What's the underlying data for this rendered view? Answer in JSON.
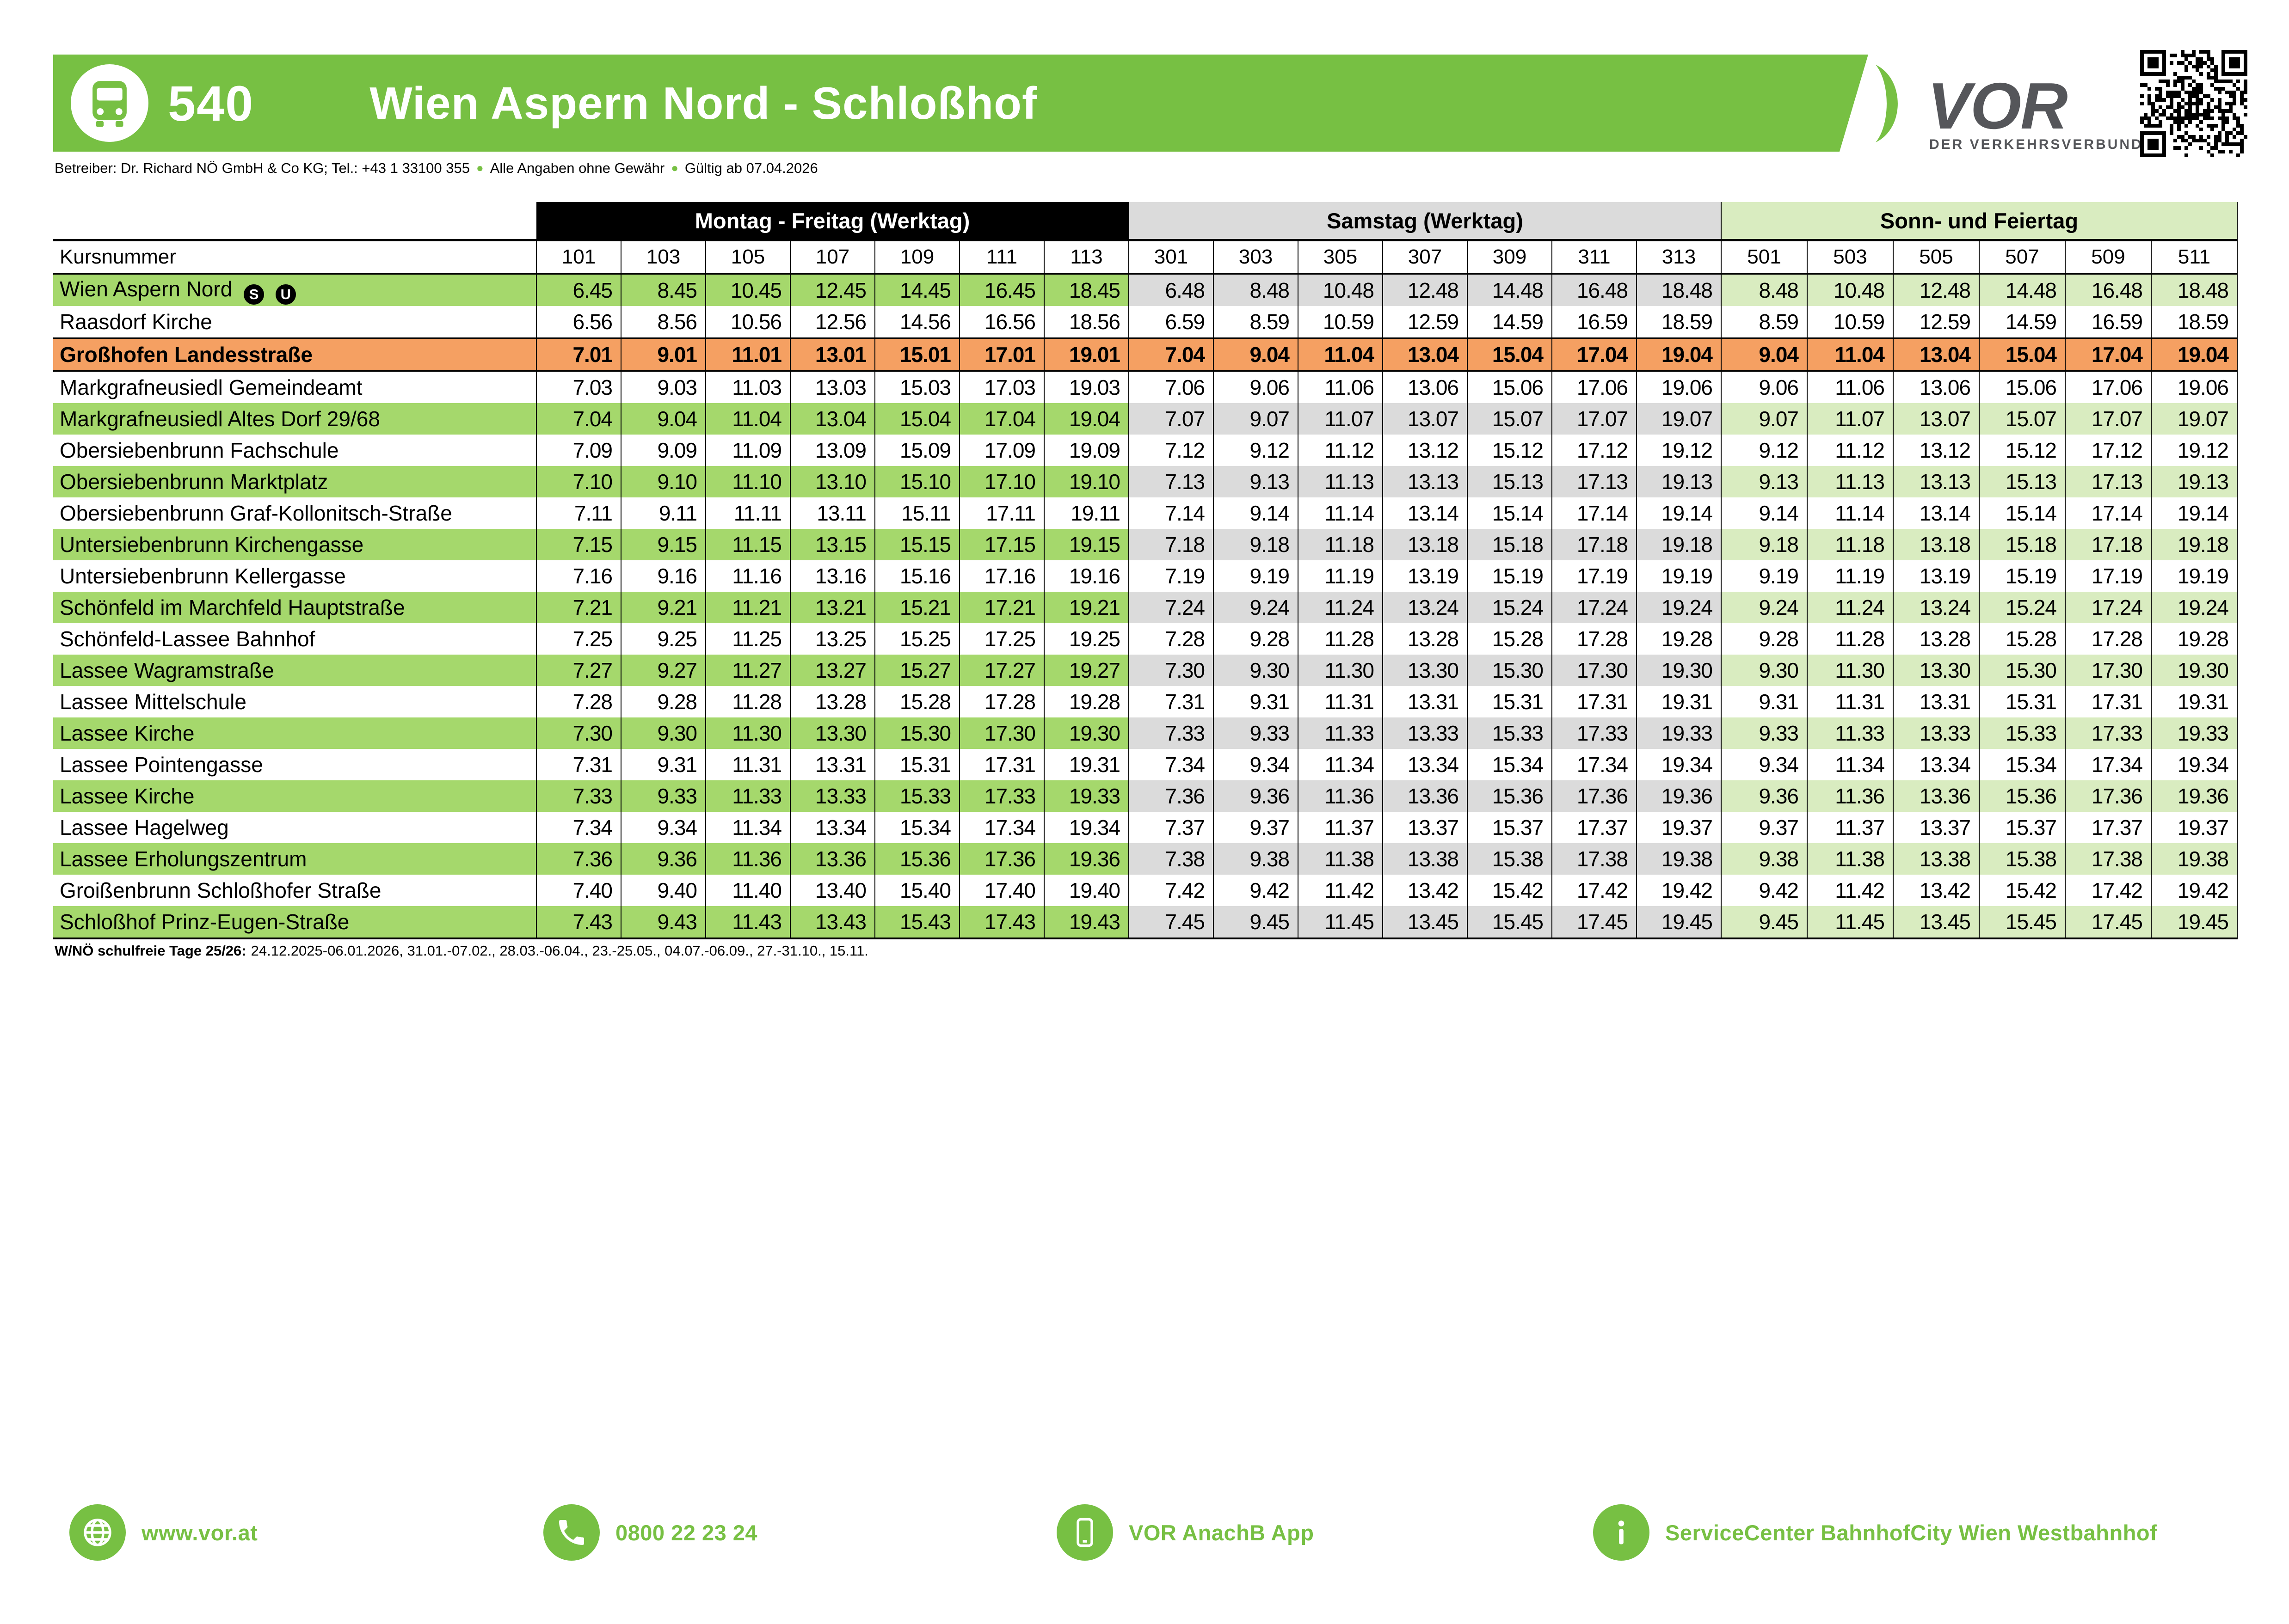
{
  "header": {
    "line_number": "540",
    "title": "Wien Aspern Nord - Schloßhof",
    "operator": "Betreiber: Dr. Richard NÖ GmbH & Co KG; Tel.: +43 1 33100 355",
    "disclaimer": "Alle Angaben ohne Gewähr",
    "validity": "Gültig ab 07.04.2026",
    "logo_brand": "VOR",
    "logo_subtitle": "DER VERKEHRSVERBUND"
  },
  "colors": {
    "brand_green": "#77C043",
    "row_highlight_green": "#A5D86C",
    "saturday_gray": "#DBDBDB",
    "sunday_light_green": "#D9ECC0",
    "emphasis_orange": "#F5A062",
    "logo_gray": "#55565A"
  },
  "timetable": {
    "kursnummer_label": "Kursnummer",
    "sections": [
      {
        "id": "mf",
        "label": "Montag - Freitag (Werktag)",
        "course_numbers": [
          "101",
          "103",
          "105",
          "107",
          "109",
          "111",
          "113"
        ]
      },
      {
        "id": "sa",
        "label": "Samstag (Werktag)",
        "course_numbers": [
          "301",
          "303",
          "305",
          "307",
          "309",
          "311",
          "313"
        ]
      },
      {
        "id": "su",
        "label": "Sonn- und Feiertag",
        "course_numbers": [
          "501",
          "503",
          "505",
          "507",
          "509",
          "511"
        ]
      }
    ],
    "rows": [
      {
        "name": "Wien Aspern Nord",
        "icons": [
          "S",
          "U"
        ],
        "style": "highlight",
        "mf": [
          "6.45",
          "8.45",
          "10.45",
          "12.45",
          "14.45",
          "16.45",
          "18.45"
        ],
        "sa": [
          "6.48",
          "8.48",
          "10.48",
          "12.48",
          "14.48",
          "16.48",
          "18.48"
        ],
        "su": [
          "8.48",
          "10.48",
          "12.48",
          "14.48",
          "16.48",
          "18.48"
        ]
      },
      {
        "name": "Raasdorf Kirche",
        "icons": [],
        "style": "plain",
        "mf": [
          "6.56",
          "8.56",
          "10.56",
          "12.56",
          "14.56",
          "16.56",
          "18.56"
        ],
        "sa": [
          "6.59",
          "8.59",
          "10.59",
          "12.59",
          "14.59",
          "16.59",
          "18.59"
        ],
        "su": [
          "8.59",
          "10.59",
          "12.59",
          "14.59",
          "16.59",
          "18.59"
        ]
      },
      {
        "name": "Großhofen Landesstraße",
        "icons": [],
        "style": "emphasis",
        "mf": [
          "7.01",
          "9.01",
          "11.01",
          "13.01",
          "15.01",
          "17.01",
          "19.01"
        ],
        "sa": [
          "7.04",
          "9.04",
          "11.04",
          "13.04",
          "15.04",
          "17.04",
          "19.04"
        ],
        "su": [
          "9.04",
          "11.04",
          "13.04",
          "15.04",
          "17.04",
          "19.04"
        ]
      },
      {
        "name": "Markgrafneusiedl Gemeindeamt",
        "icons": [],
        "style": "plain",
        "mf": [
          "7.03",
          "9.03",
          "11.03",
          "13.03",
          "15.03",
          "17.03",
          "19.03"
        ],
        "sa": [
          "7.06",
          "9.06",
          "11.06",
          "13.06",
          "15.06",
          "17.06",
          "19.06"
        ],
        "su": [
          "9.06",
          "11.06",
          "13.06",
          "15.06",
          "17.06",
          "19.06"
        ]
      },
      {
        "name": "Markgrafneusiedl Altes Dorf 29/68",
        "icons": [],
        "style": "highlight",
        "mf": [
          "7.04",
          "9.04",
          "11.04",
          "13.04",
          "15.04",
          "17.04",
          "19.04"
        ],
        "sa": [
          "7.07",
          "9.07",
          "11.07",
          "13.07",
          "15.07",
          "17.07",
          "19.07"
        ],
        "su": [
          "9.07",
          "11.07",
          "13.07",
          "15.07",
          "17.07",
          "19.07"
        ]
      },
      {
        "name": "Obersiebenbrunn Fachschule",
        "icons": [],
        "style": "plain",
        "mf": [
          "7.09",
          "9.09",
          "11.09",
          "13.09",
          "15.09",
          "17.09",
          "19.09"
        ],
        "sa": [
          "7.12",
          "9.12",
          "11.12",
          "13.12",
          "15.12",
          "17.12",
          "19.12"
        ],
        "su": [
          "9.12",
          "11.12",
          "13.12",
          "15.12",
          "17.12",
          "19.12"
        ]
      },
      {
        "name": "Obersiebenbrunn Marktplatz",
        "icons": [],
        "style": "highlight",
        "mf": [
          "7.10",
          "9.10",
          "11.10",
          "13.10",
          "15.10",
          "17.10",
          "19.10"
        ],
        "sa": [
          "7.13",
          "9.13",
          "11.13",
          "13.13",
          "15.13",
          "17.13",
          "19.13"
        ],
        "su": [
          "9.13",
          "11.13",
          "13.13",
          "15.13",
          "17.13",
          "19.13"
        ]
      },
      {
        "name": "Obersiebenbrunn Graf-Kollonitsch-Straße",
        "icons": [],
        "style": "plain",
        "mf": [
          "7.11",
          "9.11",
          "11.11",
          "13.11",
          "15.11",
          "17.11",
          "19.11"
        ],
        "sa": [
          "7.14",
          "9.14",
          "11.14",
          "13.14",
          "15.14",
          "17.14",
          "19.14"
        ],
        "su": [
          "9.14",
          "11.14",
          "13.14",
          "15.14",
          "17.14",
          "19.14"
        ]
      },
      {
        "name": "Untersiebenbrunn Kirchengasse",
        "icons": [],
        "style": "highlight",
        "mf": [
          "7.15",
          "9.15",
          "11.15",
          "13.15",
          "15.15",
          "17.15",
          "19.15"
        ],
        "sa": [
          "7.18",
          "9.18",
          "11.18",
          "13.18",
          "15.18",
          "17.18",
          "19.18"
        ],
        "su": [
          "9.18",
          "11.18",
          "13.18",
          "15.18",
          "17.18",
          "19.18"
        ]
      },
      {
        "name": "Untersiebenbrunn Kellergasse",
        "icons": [],
        "style": "plain",
        "mf": [
          "7.16",
          "9.16",
          "11.16",
          "13.16",
          "15.16",
          "17.16",
          "19.16"
        ],
        "sa": [
          "7.19",
          "9.19",
          "11.19",
          "13.19",
          "15.19",
          "17.19",
          "19.19"
        ],
        "su": [
          "9.19",
          "11.19",
          "13.19",
          "15.19",
          "17.19",
          "19.19"
        ]
      },
      {
        "name": "Schönfeld im Marchfeld Hauptstraße",
        "icons": [],
        "style": "highlight",
        "mf": [
          "7.21",
          "9.21",
          "11.21",
          "13.21",
          "15.21",
          "17.21",
          "19.21"
        ],
        "sa": [
          "7.24",
          "9.24",
          "11.24",
          "13.24",
          "15.24",
          "17.24",
          "19.24"
        ],
        "su": [
          "9.24",
          "11.24",
          "13.24",
          "15.24",
          "17.24",
          "19.24"
        ]
      },
      {
        "name": "Schönfeld-Lassee Bahnhof",
        "icons": [],
        "style": "plain",
        "mf": [
          "7.25",
          "9.25",
          "11.25",
          "13.25",
          "15.25",
          "17.25",
          "19.25"
        ],
        "sa": [
          "7.28",
          "9.28",
          "11.28",
          "13.28",
          "15.28",
          "17.28",
          "19.28"
        ],
        "su": [
          "9.28",
          "11.28",
          "13.28",
          "15.28",
          "17.28",
          "19.28"
        ]
      },
      {
        "name": "Lassee Wagramstraße",
        "icons": [],
        "style": "highlight",
        "mf": [
          "7.27",
          "9.27",
          "11.27",
          "13.27",
          "15.27",
          "17.27",
          "19.27"
        ],
        "sa": [
          "7.30",
          "9.30",
          "11.30",
          "13.30",
          "15.30",
          "17.30",
          "19.30"
        ],
        "su": [
          "9.30",
          "11.30",
          "13.30",
          "15.30",
          "17.30",
          "19.30"
        ]
      },
      {
        "name": "Lassee Mittelschule",
        "icons": [],
        "style": "plain",
        "mf": [
          "7.28",
          "9.28",
          "11.28",
          "13.28",
          "15.28",
          "17.28",
          "19.28"
        ],
        "sa": [
          "7.31",
          "9.31",
          "11.31",
          "13.31",
          "15.31",
          "17.31",
          "19.31"
        ],
        "su": [
          "9.31",
          "11.31",
          "13.31",
          "15.31",
          "17.31",
          "19.31"
        ]
      },
      {
        "name": "Lassee Kirche",
        "icons": [],
        "style": "highlight",
        "mf": [
          "7.30",
          "9.30",
          "11.30",
          "13.30",
          "15.30",
          "17.30",
          "19.30"
        ],
        "sa": [
          "7.33",
          "9.33",
          "11.33",
          "13.33",
          "15.33",
          "17.33",
          "19.33"
        ],
        "su": [
          "9.33",
          "11.33",
          "13.33",
          "15.33",
          "17.33",
          "19.33"
        ]
      },
      {
        "name": "Lassee Pointengasse",
        "icons": [],
        "style": "plain",
        "mf": [
          "7.31",
          "9.31",
          "11.31",
          "13.31",
          "15.31",
          "17.31",
          "19.31"
        ],
        "sa": [
          "7.34",
          "9.34",
          "11.34",
          "13.34",
          "15.34",
          "17.34",
          "19.34"
        ],
        "su": [
          "9.34",
          "11.34",
          "13.34",
          "15.34",
          "17.34",
          "19.34"
        ]
      },
      {
        "name": "Lassee Kirche",
        "icons": [],
        "style": "highlight",
        "mf": [
          "7.33",
          "9.33",
          "11.33",
          "13.33",
          "15.33",
          "17.33",
          "19.33"
        ],
        "sa": [
          "7.36",
          "9.36",
          "11.36",
          "13.36",
          "15.36",
          "17.36",
          "19.36"
        ],
        "su": [
          "9.36",
          "11.36",
          "13.36",
          "15.36",
          "17.36",
          "19.36"
        ]
      },
      {
        "name": "Lassee Hagelweg",
        "icons": [],
        "style": "plain",
        "mf": [
          "7.34",
          "9.34",
          "11.34",
          "13.34",
          "15.34",
          "17.34",
          "19.34"
        ],
        "sa": [
          "7.37",
          "9.37",
          "11.37",
          "13.37",
          "15.37",
          "17.37",
          "19.37"
        ],
        "su": [
          "9.37",
          "11.37",
          "13.37",
          "15.37",
          "17.37",
          "19.37"
        ]
      },
      {
        "name": "Lassee Erholungszentrum",
        "icons": [],
        "style": "highlight",
        "mf": [
          "7.36",
          "9.36",
          "11.36",
          "13.36",
          "15.36",
          "17.36",
          "19.36"
        ],
        "sa": [
          "7.38",
          "9.38",
          "11.38",
          "13.38",
          "15.38",
          "17.38",
          "19.38"
        ],
        "su": [
          "9.38",
          "11.38",
          "13.38",
          "15.38",
          "17.38",
          "19.38"
        ]
      },
      {
        "name": "Groißenbrunn Schloßhofer Straße",
        "icons": [],
        "style": "plain",
        "mf": [
          "7.40",
          "9.40",
          "11.40",
          "13.40",
          "15.40",
          "17.40",
          "19.40"
        ],
        "sa": [
          "7.42",
          "9.42",
          "11.42",
          "13.42",
          "15.42",
          "17.42",
          "19.42"
        ],
        "su": [
          "9.42",
          "11.42",
          "13.42",
          "15.42",
          "17.42",
          "19.42"
        ]
      },
      {
        "name": "Schloßhof Prinz-Eugen-Straße",
        "icons": [],
        "style": "highlight",
        "mf": [
          "7.43",
          "9.43",
          "11.43",
          "13.43",
          "15.43",
          "17.43",
          "19.43"
        ],
        "sa": [
          "7.45",
          "9.45",
          "11.45",
          "13.45",
          "15.45",
          "17.45",
          "19.45"
        ],
        "su": [
          "9.45",
          "11.45",
          "13.45",
          "15.45",
          "17.45",
          "19.45"
        ]
      }
    ]
  },
  "footnote": {
    "bold": "W/NÖ schulfreie Tage 25/26:",
    "text": "24.12.2025-06.01.2026, 31.01.-07.02., 28.03.-06.04., 23.-25.05., 04.07.-06.09., 27.-31.10., 15.11."
  },
  "footer": {
    "items": [
      {
        "icon": "globe",
        "label": "www.vor.at"
      },
      {
        "icon": "phone",
        "label": "0800 22 23 24"
      },
      {
        "icon": "smartphone",
        "label": "VOR AnachB App"
      },
      {
        "icon": "info",
        "label": "ServiceCenter BahnhofCity Wien Westbahnhof"
      }
    ]
  }
}
